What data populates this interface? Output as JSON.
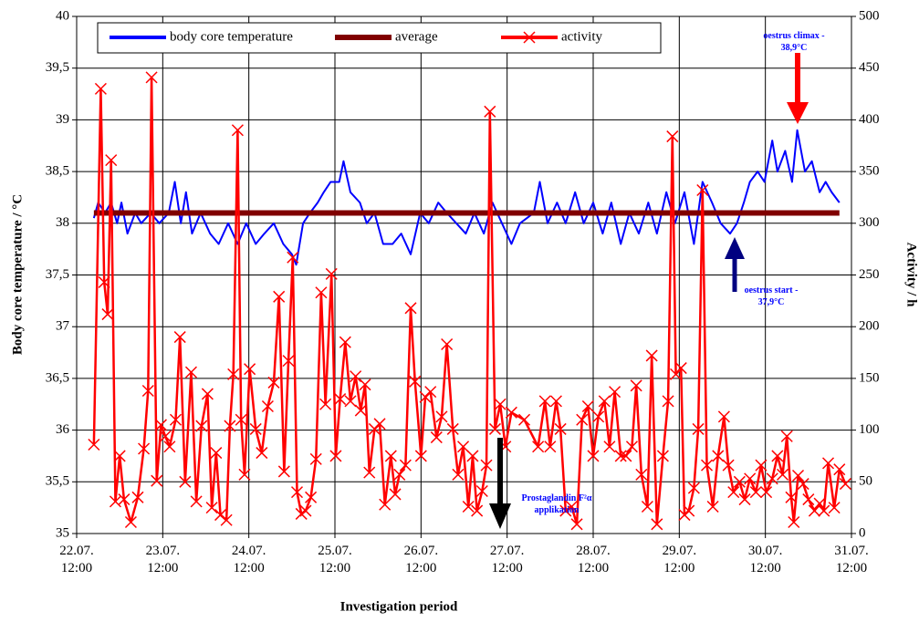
{
  "chart_data": {
    "type": "line",
    "xlabel": "Investigation period",
    "ylabel": "Body core temperature / °C",
    "y2label": "Activity / h",
    "grid": true,
    "xlim": [
      22.5,
      31.5
    ],
    "xticks": [
      {
        "value": 22.5,
        "label": "22.07. 12:00"
      },
      {
        "value": 23.5,
        "label": "23.07. 12:00"
      },
      {
        "value": 24.5,
        "label": "24.07. 12:00"
      },
      {
        "value": 25.5,
        "label": "25.07. 12:00"
      },
      {
        "value": 26.5,
        "label": "26.07. 12:00"
      },
      {
        "value": 27.5,
        "label": "27.07. 12:00"
      },
      {
        "value": 28.5,
        "label": "28.07. 12:00"
      },
      {
        "value": 29.5,
        "label": "29.07. 12:00"
      },
      {
        "value": 30.5,
        "label": "30.07. 12:00"
      },
      {
        "value": 31.5,
        "label": "31.07. 12:00"
      }
    ],
    "ylim": [
      35,
      40
    ],
    "yticks": [
      35,
      {
        "value": 35.5,
        "label": "35,5"
      },
      36,
      {
        "value": 36.5,
        "label": "36,5"
      },
      37,
      {
        "value": 37.5,
        "label": "37,5"
      },
      38,
      {
        "value": 38.5,
        "label": "38,5"
      },
      39,
      {
        "value": 39.5,
        "label": "39,5"
      },
      40
    ],
    "y2lim": [
      0,
      500
    ],
    "y2ticks": [
      0,
      50,
      100,
      150,
      200,
      250,
      300,
      350,
      400,
      450,
      500
    ],
    "series": [
      {
        "name": "body core temperature",
        "color": "#0000ff",
        "axis": "y",
        "x": [
          22.7,
          22.75,
          22.83,
          22.9,
          22.97,
          23.02,
          23.09,
          23.18,
          23.25,
          23.36,
          23.46,
          23.57,
          23.64,
          23.71,
          23.77,
          23.84,
          23.94,
          24.05,
          24.15,
          24.26,
          24.37,
          24.47,
          24.58,
          24.68,
          24.79,
          24.9,
          25.0,
          25.05,
          25.13,
          25.21,
          25.3,
          25.37,
          25.45,
          25.55,
          25.6,
          25.68,
          25.79,
          25.87,
          25.96,
          26.06,
          26.17,
          26.27,
          26.38,
          26.49,
          26.59,
          26.7,
          26.8,
          26.91,
          27.02,
          27.12,
          27.23,
          27.33,
          27.44,
          27.55,
          27.65,
          27.81,
          27.88,
          27.97,
          28.08,
          28.18,
          28.29,
          28.39,
          28.5,
          28.61,
          28.71,
          28.82,
          28.92,
          29.03,
          29.14,
          29.24,
          29.35,
          29.45,
          29.56,
          29.67,
          29.77,
          29.88,
          29.98,
          30.09,
          30.17,
          30.25,
          30.32,
          30.41,
          30.49,
          30.58,
          30.64,
          30.73,
          30.81,
          30.87,
          30.96,
          31.04,
          31.13,
          31.2,
          31.27,
          31.36
        ],
        "values": [
          38.05,
          38.2,
          38.1,
          38.2,
          38.0,
          38.2,
          37.9,
          38.1,
          38.0,
          38.1,
          38.0,
          38.1,
          38.4,
          38.0,
          38.3,
          37.9,
          38.1,
          37.9,
          37.8,
          38.0,
          37.8,
          38.0,
          37.8,
          37.9,
          38.0,
          37.8,
          37.7,
          37.6,
          38.0,
          38.1,
          38.2,
          38.3,
          38.4,
          38.4,
          38.6,
          38.3,
          38.2,
          38.0,
          38.1,
          37.8,
          37.8,
          37.9,
          37.7,
          38.1,
          38.0,
          38.2,
          38.1,
          38.0,
          37.9,
          38.1,
          37.9,
          38.2,
          38.0,
          37.8,
          38.0,
          38.1,
          38.4,
          38.0,
          38.2,
          38.0,
          38.3,
          38.0,
          38.2,
          37.9,
          38.2,
          37.8,
          38.1,
          37.9,
          38.2,
          37.9,
          38.3,
          38.0,
          38.3,
          37.8,
          38.4,
          38.2,
          38.0,
          37.9,
          38.0,
          38.2,
          38.4,
          38.5,
          38.4,
          38.8,
          38.5,
          38.7,
          38.4,
          38.9,
          38.5,
          38.6,
          38.3,
          38.4,
          38.3,
          38.2
        ]
      },
      {
        "name": "average",
        "color": "#800000",
        "axis": "y",
        "x": [
          22.7,
          31.36
        ],
        "values": [
          38.1,
          38.1
        ]
      },
      {
        "name": "activity",
        "color": "#ff0000",
        "axis": "y2",
        "marker": "x",
        "x": [
          22.7,
          22.78,
          22.82,
          22.86,
          22.9,
          22.95,
          23.0,
          23.05,
          23.13,
          23.21,
          23.28,
          23.33,
          23.37,
          23.43,
          23.48,
          23.53,
          23.58,
          23.65,
          23.7,
          23.76,
          23.83,
          23.89,
          23.95,
          24.02,
          24.07,
          24.12,
          24.17,
          24.24,
          24.28,
          24.32,
          24.37,
          24.41,
          24.45,
          24.51,
          24.58,
          24.65,
          24.72,
          24.79,
          24.85,
          24.91,
          24.96,
          25.01,
          25.06,
          25.11,
          25.16,
          25.22,
          25.28,
          25.34,
          25.39,
          25.46,
          25.51,
          25.56,
          25.62,
          25.68,
          25.74,
          25.8,
          25.85,
          25.9,
          25.96,
          26.02,
          26.08,
          26.15,
          26.2,
          26.25,
          26.32,
          26.38,
          26.43,
          26.5,
          26.55,
          26.61,
          26.68,
          26.74,
          26.8,
          26.87,
          26.93,
          26.99,
          27.05,
          27.1,
          27.15,
          27.21,
          27.26,
          27.3,
          27.36,
          27.42,
          27.48,
          27.55,
          27.7,
          27.86,
          27.94,
          28.0,
          28.07,
          28.12,
          28.18,
          28.25,
          28.31,
          28.37,
          28.44,
          28.5,
          28.56,
          28.63,
          28.69,
          28.75,
          28.82,
          28.88,
          28.95,
          29.0,
          29.06,
          29.13,
          29.18,
          29.24,
          29.31,
          29.37,
          29.42,
          29.46,
          29.52,
          29.56,
          29.61,
          29.67,
          29.72,
          29.77,
          29.82,
          29.89,
          29.95,
          30.02,
          30.07,
          30.13,
          30.2,
          30.26,
          30.32,
          30.39,
          30.45,
          30.51,
          30.58,
          30.64,
          30.7,
          30.75,
          30.8,
          30.83,
          30.88,
          30.94,
          31.0,
          31.07,
          31.13,
          31.18,
          31.23,
          31.3,
          31.36,
          31.43
        ],
        "values": [
          86,
          430,
          243,
          212,
          361,
          31,
          75,
          33,
          11,
          35,
          82,
          138,
          441,
          51,
          105,
          94,
          84,
          110,
          190,
          50,
          156,
          31,
          104,
          135,
          25,
          78,
          18,
          13,
          104,
          154,
          390,
          110,
          57,
          159,
          101,
          78,
          123,
          146,
          229,
          60,
          167,
          267,
          40,
          19,
          22,
          35,
          72,
          233,
          125,
          251,
          75,
          130,
          185,
          128,
          152,
          119,
          144,
          59,
          101,
          106,
          28,
          75,
          38,
          57,
          66,
          218,
          147,
          75,
          132,
          137,
          93,
          113,
          183,
          101,
          57,
          84,
          26,
          75,
          22,
          41,
          66,
          408,
          101,
          125,
          84,
          117,
          110,
          84,
          128,
          84,
          128,
          101,
          22,
          26,
          9,
          110,
          123,
          75,
          113,
          128,
          84,
          137,
          75,
          75,
          84,
          143,
          57,
          26,
          172,
          9,
          75,
          128,
          384,
          154,
          160,
          18,
          22,
          44,
          101,
          332,
          66,
          26,
          75,
          113,
          66,
          40,
          50,
          33,
          53,
          40,
          66,
          40,
          53,
          75,
          57,
          94,
          35,
          11,
          56,
          48,
          33,
          22,
          29,
          22,
          68,
          25,
          62,
          48
        ]
      }
    ],
    "legend": "top",
    "annotations": [
      {
        "text": [
          "oestrus climax -",
          "38,9°C"
        ],
        "color": "#0000ff"
      },
      {
        "text": [
          "oestrus start -",
          "37,9°C"
        ],
        "color": "#0000ff"
      },
      {
        "text": [
          "Prostaglandin F²α",
          "applikation"
        ],
        "color": "#0000ff"
      }
    ]
  }
}
